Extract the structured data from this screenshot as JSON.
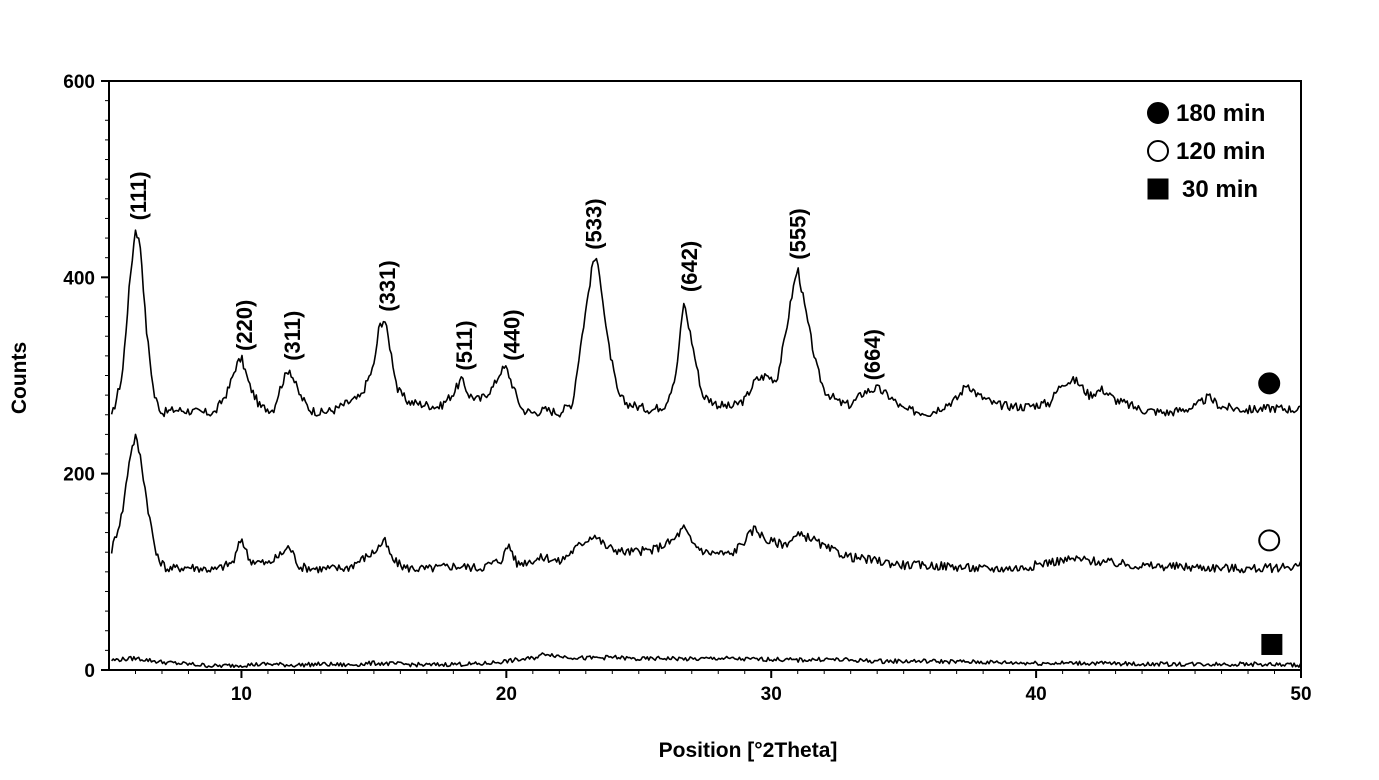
{
  "chart_data": {
    "type": "line",
    "title": "",
    "xlabel": "Position [°2Theta]",
    "ylabel": "Counts",
    "xlim": [
      5,
      50
    ],
    "ylim": [
      0,
      600
    ],
    "x_ticks": [
      10,
      20,
      30,
      40,
      50
    ],
    "y_ticks": [
      0,
      200,
      400,
      600
    ],
    "grid": false,
    "legend_position": "top-right",
    "legend": [
      {
        "label": "180 min",
        "marker": "filled-circle"
      },
      {
        "label": "120 min",
        "marker": "open-circle"
      },
      {
        "label": "30 min",
        "marker": "filled-square"
      }
    ],
    "series": [
      {
        "name": "180 min",
        "marker": "filled-circle",
        "marker_point": [
          48.8,
          292
        ],
        "x": [
          5.1,
          5.5,
          5.8,
          6.0,
          6.2,
          6.4,
          6.7,
          7.0,
          7.5,
          8.0,
          8.5,
          9.0,
          9.5,
          9.8,
          10.0,
          10.3,
          10.7,
          11.2,
          11.5,
          11.8,
          12.2,
          12.6,
          13.0,
          13.5,
          14.0,
          14.5,
          15.0,
          15.2,
          15.4,
          15.6,
          15.9,
          16.3,
          17.0,
          17.5,
          18.0,
          18.3,
          18.6,
          19.0,
          19.5,
          19.8,
          20.0,
          20.3,
          20.6,
          21.0,
          21.5,
          22.0,
          22.5,
          22.8,
          23.1,
          23.3,
          23.5,
          23.8,
          24.2,
          24.5,
          25.0,
          25.5,
          26.0,
          26.4,
          26.7,
          27.0,
          27.4,
          28.0,
          28.5,
          29.0,
          29.4,
          29.8,
          30.2,
          30.5,
          30.8,
          31.0,
          31.3,
          31.7,
          32.0,
          32.3,
          32.6,
          33.0,
          33.5,
          34.0,
          34.5,
          35.0,
          36.0,
          37.0,
          37.4,
          37.8,
          38.5,
          39.5,
          40.5,
          41.0,
          41.5,
          42.0,
          42.5,
          43.0,
          44.0,
          45.0,
          46.0,
          46.5,
          47.0,
          48.0,
          49.0,
          50.0
        ],
        "y": [
          257,
          300,
          400,
          450,
          430,
          350,
          280,
          262,
          265,
          264,
          262,
          262,
          285,
          310,
          318,
          290,
          268,
          265,
          290,
          308,
          280,
          265,
          262,
          265,
          272,
          278,
          310,
          350,
          358,
          330,
          285,
          273,
          270,
          268,
          282,
          296,
          280,
          275,
          288,
          305,
          308,
          285,
          265,
          262,
          265,
          262,
          272,
          330,
          385,
          420,
          410,
          340,
          282,
          272,
          268,
          265,
          270,
          300,
          375,
          335,
          280,
          270,
          268,
          275,
          295,
          300,
          295,
          335,
          385,
          410,
          365,
          310,
          285,
          278,
          272,
          270,
          283,
          287,
          278,
          265,
          262,
          276,
          292,
          280,
          270,
          268,
          272,
          293,
          295,
          280,
          286,
          275,
          265,
          262,
          268,
          278,
          268,
          265,
          267,
          265
        ]
      },
      {
        "name": "120 min",
        "marker": "open-circle",
        "marker_point": [
          48.8,
          132
        ],
        "x": [
          5.1,
          5.5,
          5.8,
          6.0,
          6.2,
          6.5,
          6.8,
          7.2,
          8.0,
          9.0,
          9.7,
          10.0,
          10.3,
          11.0,
          11.5,
          11.8,
          12.2,
          13.0,
          14.0,
          15.0,
          15.4,
          15.7,
          16.2,
          17.0,
          18.0,
          19.0,
          19.8,
          20.1,
          20.4,
          21.0,
          21.5,
          22.0,
          22.8,
          23.3,
          23.8,
          24.5,
          25.5,
          26.3,
          26.7,
          27.0,
          27.5,
          28.5,
          29.0,
          29.4,
          29.8,
          30.5,
          31.0,
          31.5,
          32.0,
          33.0,
          34.0,
          35.0,
          36.5,
          38.0,
          39.5,
          40.5,
          41.5,
          42.5,
          44.0,
          45.5,
          47.0,
          48.0,
          49.0,
          50.0
        ],
        "y": [
          122,
          160,
          220,
          238,
          215,
          160,
          115,
          103,
          105,
          102,
          110,
          135,
          112,
          108,
          118,
          126,
          105,
          103,
          104,
          120,
          132,
          112,
          104,
          103,
          106,
          104,
          112,
          128,
          108,
          112,
          115,
          110,
          128,
          138,
          125,
          120,
          122,
          132,
          145,
          130,
          120,
          118,
          132,
          145,
          132,
          128,
          137,
          135,
          125,
          115,
          111,
          107,
          106,
          103,
          104,
          110,
          113,
          110,
          106,
          105,
          104,
          103,
          104,
          107
        ]
      },
      {
        "name": "30 min",
        "marker": "filled-square",
        "marker_point": [
          48.9,
          26
        ],
        "x": [
          5.1,
          6.0,
          7.0,
          8.0,
          9.0,
          10.0,
          11.0,
          12.0,
          13.0,
          14.0,
          15.0,
          16.0,
          17.0,
          18.0,
          19.0,
          20.0,
          21.0,
          21.5,
          22.0,
          23.0,
          24.0,
          25.0,
          26.0,
          27.0,
          28.0,
          29.0,
          30.0,
          31.0,
          32.0,
          33.0,
          34.0,
          35.0,
          36.0,
          38.0,
          40.0,
          42.0,
          44.0,
          46.0,
          48.0,
          50.0
        ],
        "y": [
          10,
          12,
          8,
          6,
          4,
          5,
          6,
          5,
          6,
          5,
          7,
          6,
          5,
          6,
          6,
          9,
          12,
          17,
          14,
          12,
          13,
          11,
          12,
          11,
          12,
          11,
          11,
          10,
          11,
          10,
          9,
          9,
          9,
          8,
          7,
          7,
          6,
          6,
          6,
          5
        ]
      }
    ],
    "annotations": [
      {
        "text": "(111)",
        "x": 6.1,
        "y": 458
      },
      {
        "text": "(220)",
        "x": 10.1,
        "y": 325
      },
      {
        "text": "(311)",
        "x": 11.9,
        "y": 315
      },
      {
        "text": "(331)",
        "x": 15.5,
        "y": 365
      },
      {
        "text": "(511)",
        "x": 18.4,
        "y": 305
      },
      {
        "text": "(440)",
        "x": 20.2,
        "y": 315
      },
      {
        "text": "(533)",
        "x": 23.3,
        "y": 428
      },
      {
        "text": "(642)",
        "x": 26.9,
        "y": 385
      },
      {
        "text": "(555)",
        "x": 31.0,
        "y": 418
      },
      {
        "text": "(664)",
        "x": 33.8,
        "y": 295
      }
    ]
  }
}
